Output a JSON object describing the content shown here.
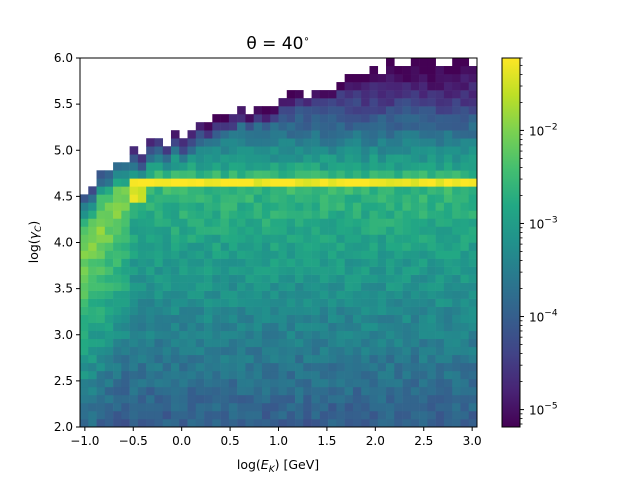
{
  "chart_data": {
    "type": "heatmap",
    "title_prefix": "θ = 40",
    "title_suffix": "∘",
    "xlabel_pre": "log(",
    "xlabel_var": "E",
    "xlabel_sub": "K",
    "xlabel_post": ") [GeV]",
    "ylabel_pre": "log(",
    "ylabel_var": "γ",
    "ylabel_sub": "C",
    "ylabel_post": ")",
    "xlim": [
      -1.05,
      3.05
    ],
    "ylim": [
      2.0,
      6.0
    ],
    "x_ticks": [
      -1.0,
      -0.5,
      0.0,
      0.5,
      1.0,
      1.5,
      2.0,
      2.5,
      3.0
    ],
    "x_tick_labels": [
      "−1.0",
      "−0.5",
      "0.0",
      "0.5",
      "1.0",
      "1.5",
      "2.0",
      "2.5",
      "3.0"
    ],
    "y_ticks": [
      2.0,
      2.5,
      3.0,
      3.5,
      4.0,
      4.5,
      5.0,
      5.5,
      6.0
    ],
    "y_tick_labels": [
      "2.0",
      "2.5",
      "3.0",
      "3.5",
      "4.0",
      "4.5",
      "5.0",
      "5.5",
      "6.0"
    ],
    "colorbar": {
      "scale": "log",
      "colormap": "viridis",
      "range": [
        6.5e-06,
        0.06
      ],
      "ticks": [
        1e-05,
        0.0001,
        0.001,
        0.01
      ],
      "tick_base": [
        "10",
        "10",
        "10",
        "10"
      ],
      "tick_exponents": [
        "−5",
        "−4",
        "−3",
        "−2"
      ]
    },
    "grid": false,
    "description": "2D histogram of log(γC) vs log(E_K). Sharp yellow ridge near log(γC)≈4.65 for log(E_K) > -0.5; curved bright branch from (−1.0, ~3.9) up to (−0.5, 4.6); values fall off toward low log(γC); empty region above an upper envelope rising from 4.4 at −1.0 to 6.0 near 2.0."
  }
}
